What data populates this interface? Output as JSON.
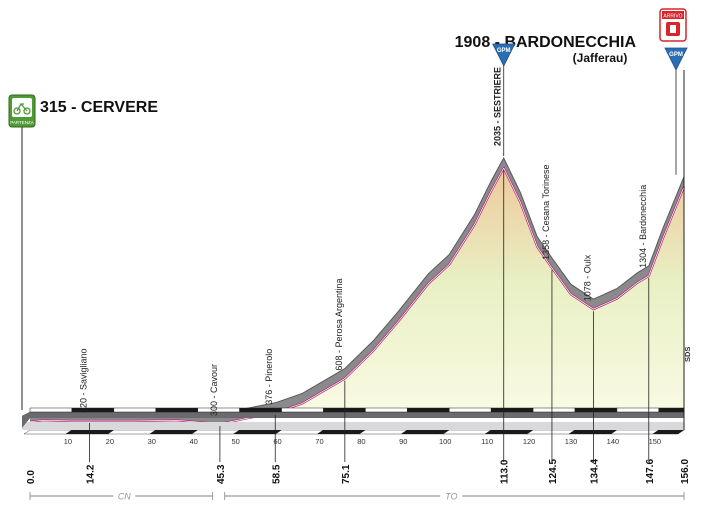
{
  "start": {
    "elevation_label": "315",
    "name": "CERVERE",
    "badge": "PARTENZA"
  },
  "finish": {
    "title": "1908 - BARDONECCHIA",
    "subtitle": "(Jafferau)",
    "badge": "ARRIVO"
  },
  "gpm_badge": "GPM",
  "sds": "SDS",
  "provinces": [
    {
      "label": "CN",
      "from_km": 0,
      "to_km": 45
    },
    {
      "label": "TO",
      "from_km": 45,
      "to_km": 156
    }
  ],
  "colors": {
    "profile_band": "#8a8a8c",
    "profile_line": "#b0307a",
    "fill_low": "#fbfbe6",
    "fill_mid": "#e8f0c4",
    "fill_high": "#eec99c",
    "gpm_blue": "#2b6eb4",
    "start_green": "#4f9a35",
    "finish_red": "#d6262c"
  },
  "chart_data": {
    "type": "area",
    "title": "",
    "xlabel": "",
    "ylabel": "",
    "xlim": [
      0,
      156
    ],
    "ylim": [
      200,
      2100
    ],
    "profile": [
      {
        "km": 0,
        "elev": 315
      },
      {
        "km": 3,
        "elev": 325
      },
      {
        "km": 10,
        "elev": 320
      },
      {
        "km": 14.2,
        "elev": 320
      },
      {
        "km": 25,
        "elev": 320
      },
      {
        "km": 35,
        "elev": 325
      },
      {
        "km": 45.3,
        "elev": 300
      },
      {
        "km": 52,
        "elev": 340
      },
      {
        "km": 58.5,
        "elev": 376
      },
      {
        "km": 65,
        "elev": 440
      },
      {
        "km": 75.1,
        "elev": 608
      },
      {
        "km": 82,
        "elev": 800
      },
      {
        "km": 88,
        "elev": 1000
      },
      {
        "km": 95,
        "elev": 1250
      },
      {
        "km": 100,
        "elev": 1380
      },
      {
        "km": 106,
        "elev": 1650
      },
      {
        "km": 110,
        "elev": 1880
      },
      {
        "km": 113,
        "elev": 2035
      },
      {
        "km": 117,
        "elev": 1800
      },
      {
        "km": 121,
        "elev": 1500
      },
      {
        "km": 124.5,
        "elev": 1358
      },
      {
        "km": 129,
        "elev": 1180
      },
      {
        "km": 134.4,
        "elev": 1078
      },
      {
        "km": 140,
        "elev": 1150
      },
      {
        "km": 145,
        "elev": 1260
      },
      {
        "km": 147.6,
        "elev": 1304
      },
      {
        "km": 151,
        "elev": 1560
      },
      {
        "km": 156,
        "elev": 1908
      }
    ],
    "waypoints": [
      {
        "km": 0,
        "km_label": "0.0",
        "elev": 315,
        "name": "",
        "tick": false
      },
      {
        "km": 14.2,
        "km_label": "14.2",
        "elev": 320,
        "name": "320 - Savigliano",
        "tick": true
      },
      {
        "km": 45.3,
        "km_label": "45.3",
        "elev": 300,
        "name": "300 - Cavour",
        "tick": true
      },
      {
        "km": 58.5,
        "km_label": "58.5",
        "elev": 376,
        "name": "376 - Pinerolo",
        "tick": true
      },
      {
        "km": 75.1,
        "km_label": "75.1",
        "elev": 608,
        "name": "608 - Perosa Argentina",
        "tick": true
      },
      {
        "km": 113.0,
        "km_label": "113.0",
        "elev": 2035,
        "name": "2035 - SESTRIERE",
        "tick": true,
        "bold": true
      },
      {
        "km": 124.5,
        "km_label": "124.5",
        "elev": 1358,
        "name": "1358 - Cesana Torinese",
        "tick": true
      },
      {
        "km": 134.4,
        "km_label": "134.4",
        "elev": 1078,
        "name": "1078 - Oulx",
        "tick": true
      },
      {
        "km": 147.6,
        "km_label": "147.6",
        "elev": 1304,
        "name": "1304 - Bardonecchia",
        "tick": true
      },
      {
        "km": 156.0,
        "km_label": "156.0",
        "elev": 1908,
        "name": "",
        "tick": false
      }
    ],
    "km_ticks": [
      10,
      20,
      30,
      40,
      50,
      60,
      70,
      80,
      90,
      100,
      110,
      120,
      130,
      140,
      150
    ],
    "gpm_km": [
      113,
      156
    ]
  }
}
